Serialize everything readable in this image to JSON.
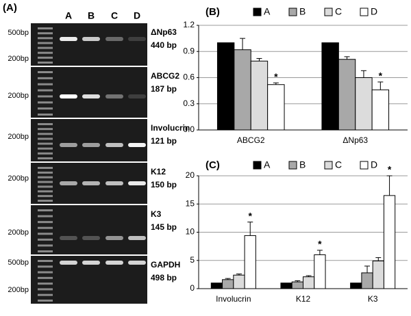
{
  "panel_a": {
    "label": "(A)",
    "lanes": [
      "A",
      "B",
      "C",
      "D"
    ],
    "gels": [
      {
        "markers": [
          "500bp",
          "200bp"
        ],
        "gene": "ΔNp63",
        "size": "440 bp"
      },
      {
        "markers": [
          "200bp"
        ],
        "gene": "ABCG2",
        "size": "187 bp"
      },
      {
        "markers": [
          "200bp"
        ],
        "gene": "Involucrin",
        "size": "121 bp"
      },
      {
        "markers": [
          "200bp"
        ],
        "gene": "K12",
        "size": "150 bp"
      },
      {
        "markers": [
          "200bp"
        ],
        "gene": "K3",
        "size": "145 bp"
      },
      {
        "markers": [
          "500bp",
          "200bp"
        ],
        "gene": "GAPDH",
        "size": "498 bp"
      }
    ]
  },
  "chart_data": [
    {
      "type": "bar",
      "title": "(B)",
      "categories": [
        "ABCG2",
        "ΔNp63"
      ],
      "series": [
        {
          "name": "A",
          "color": "#000000",
          "values": [
            1.0,
            1.0
          ],
          "errors": [
            0,
            0
          ]
        },
        {
          "name": "B",
          "color": "#a8a8a8",
          "values": [
            0.92,
            0.81
          ],
          "errors": [
            0.13,
            0.03
          ]
        },
        {
          "name": "C",
          "color": "#dcdcdc",
          "values": [
            0.79,
            0.6
          ],
          "errors": [
            0.03,
            0.08
          ]
        },
        {
          "name": "D",
          "color": "#ffffff",
          "values": [
            0.52,
            0.46
          ],
          "errors": [
            0.02,
            0.09
          ]
        }
      ],
      "annotations": [
        {
          "text": "*",
          "category": "ABCG2",
          "series": "D"
        },
        {
          "text": "*",
          "category": "ΔNp63",
          "series": "D"
        }
      ],
      "ylim": [
        0,
        1.2
      ],
      "yticks": [
        {
          "value": 0,
          "label": "0.0"
        },
        0.3,
        0.6,
        0.9,
        1.2
      ],
      "grid": true
    },
    {
      "type": "bar",
      "title": "(C)",
      "categories": [
        "Involucrin",
        "K12",
        "K3"
      ],
      "series": [
        {
          "name": "A",
          "color": "#000000",
          "values": [
            1,
            1,
            1
          ],
          "errors": [
            0,
            0,
            0
          ]
        },
        {
          "name": "B",
          "color": "#a8a8a8",
          "values": [
            1.6,
            1.2,
            2.8
          ],
          "errors": [
            0.2,
            0.2,
            1.2
          ]
        },
        {
          "name": "C",
          "color": "#dcdcdc",
          "values": [
            2.4,
            2.1,
            4.9
          ],
          "errors": [
            0.2,
            0.2,
            0.6
          ]
        },
        {
          "name": "D",
          "color": "#ffffff",
          "values": [
            9.4,
            6.0,
            16.5
          ],
          "errors": [
            2.4,
            0.8,
            3.5
          ]
        }
      ],
      "annotations": [
        {
          "text": "*",
          "category": "Involucrin",
          "series": "D"
        },
        {
          "text": "*",
          "category": "K12",
          "series": "D"
        },
        {
          "text": "*",
          "category": "K3",
          "series": "D"
        }
      ],
      "ylim": [
        0,
        20
      ],
      "yticks": [
        0,
        5,
        10,
        15,
        20
      ],
      "grid": true
    }
  ]
}
